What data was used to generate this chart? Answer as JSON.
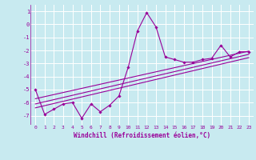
{
  "title": "",
  "xlabel": "Windchill (Refroidissement éolien,°C)",
  "ylabel": "",
  "bg_color": "#c8eaf0",
  "grid_color": "#ffffff",
  "line_color": "#990099",
  "xlim": [
    -0.5,
    23.5
  ],
  "ylim": [
    -7.7,
    1.5
  ],
  "yticks": [
    1,
    0,
    -1,
    -2,
    -3,
    -4,
    -5,
    -6,
    -7
  ],
  "xticks": [
    0,
    1,
    2,
    3,
    4,
    5,
    6,
    7,
    8,
    9,
    10,
    11,
    12,
    13,
    14,
    15,
    16,
    17,
    18,
    19,
    20,
    21,
    22,
    23
  ],
  "series": [
    [
      0,
      -5.0
    ],
    [
      1,
      -6.9
    ],
    [
      2,
      -6.5
    ],
    [
      3,
      -6.1
    ],
    [
      4,
      -6.0
    ],
    [
      5,
      -7.2
    ],
    [
      6,
      -6.1
    ],
    [
      7,
      -6.7
    ],
    [
      8,
      -6.2
    ],
    [
      9,
      -5.5
    ],
    [
      10,
      -3.3
    ],
    [
      11,
      -0.5
    ],
    [
      12,
      0.9
    ],
    [
      13,
      -0.2
    ],
    [
      14,
      -2.5
    ],
    [
      15,
      -2.7
    ],
    [
      16,
      -2.9
    ],
    [
      17,
      -2.9
    ],
    [
      18,
      -2.7
    ],
    [
      19,
      -2.6
    ],
    [
      20,
      -1.6
    ],
    [
      21,
      -2.5
    ],
    [
      22,
      -2.1
    ],
    [
      23,
      -2.1
    ]
  ],
  "linear1": [
    [
      0,
      -5.7
    ],
    [
      23,
      -2.05
    ]
  ],
  "linear2": [
    [
      0,
      -6.1
    ],
    [
      23,
      -2.3
    ]
  ],
  "linear3": [
    [
      0,
      -6.4
    ],
    [
      23,
      -2.55
    ]
  ]
}
